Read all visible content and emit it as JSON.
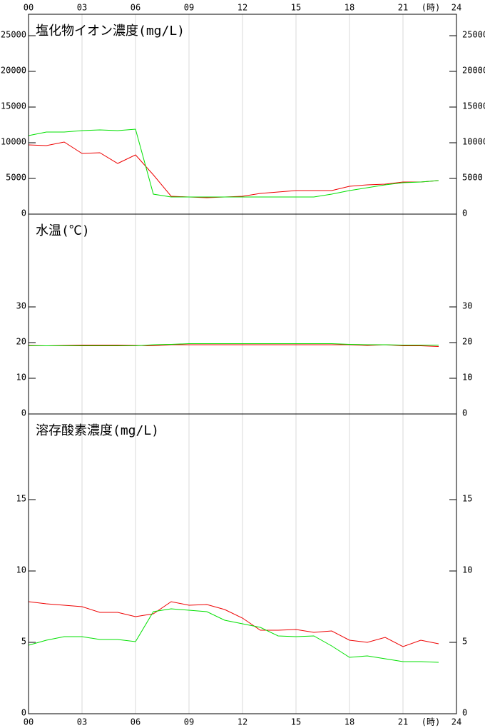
{
  "chart_data": [
    {
      "type": "line",
      "title": "塩化物イオン濃度(mg/L)",
      "x": [
        0,
        1,
        2,
        3,
        4,
        5,
        6,
        7,
        8,
        9,
        10,
        11,
        12,
        13,
        14,
        15,
        16,
        17,
        18,
        19,
        20,
        21,
        22,
        23
      ],
      "xlim": [
        0,
        24
      ],
      "xticks": [
        {
          "value": 0,
          "label": "00"
        },
        {
          "value": 3,
          "label": "03"
        },
        {
          "value": 6,
          "label": "06"
        },
        {
          "value": 9,
          "label": "09"
        },
        {
          "value": 12,
          "label": "12"
        },
        {
          "value": 15,
          "label": "15"
        },
        {
          "value": 18,
          "label": "18"
        },
        {
          "value": 21,
          "label": "21"
        },
        {
          "value": 24,
          "label": "24"
        }
      ],
      "xlabel": "(時)",
      "ylim": [
        0,
        28000
      ],
      "yticks": [
        0,
        5000,
        10000,
        15000,
        20000,
        25000
      ],
      "series": [
        {
          "color": "#ee0000",
          "values": [
            9700,
            9600,
            10100,
            8500,
            8600,
            7100,
            8300,
            5500,
            2500,
            2400,
            2300,
            2400,
            2500,
            2900,
            3100,
            3300,
            3300,
            3300,
            3900,
            4100,
            4200,
            4500,
            4500,
            4700
          ]
        },
        {
          "color": "#00e000",
          "values": [
            11000,
            11500,
            11500,
            11700,
            11800,
            11700,
            11900,
            2800,
            2400,
            2400,
            2400,
            2400,
            2400,
            2400,
            2400,
            2400,
            2400,
            2800,
            3300,
            3700,
            4100,
            4400,
            4500,
            4700
          ]
        }
      ]
    },
    {
      "type": "line",
      "title": "水温(℃)",
      "x": [
        0,
        1,
        2,
        3,
        4,
        5,
        6,
        7,
        8,
        9,
        10,
        11,
        12,
        13,
        14,
        15,
        16,
        17,
        18,
        19,
        20,
        21,
        22,
        23
      ],
      "xlim": [
        0,
        24
      ],
      "ylim": [
        0,
        56
      ],
      "yticks": [
        0,
        10,
        20,
        30
      ],
      "series": [
        {
          "color": "#ee0000",
          "values": [
            19.2,
            19.1,
            19.2,
            19.3,
            19.3,
            19.3,
            19.2,
            19.1,
            19.4,
            19.4,
            19.4,
            19.4,
            19.4,
            19.4,
            19.4,
            19.4,
            19.4,
            19.4,
            19.4,
            19.2,
            19.4,
            19.1,
            19.1,
            18.9
          ]
        },
        {
          "color": "#00e000",
          "values": [
            19.1,
            19.1,
            19.1,
            19.1,
            19.1,
            19.1,
            19.1,
            19.4,
            19.5,
            19.7,
            19.7,
            19.7,
            19.7,
            19.7,
            19.7,
            19.7,
            19.7,
            19.7,
            19.5,
            19.4,
            19.4,
            19.3,
            19.3,
            19.3
          ]
        }
      ]
    },
    {
      "type": "line",
      "title": "溶存酸素濃度(mg/L)",
      "x": [
        0,
        1,
        2,
        3,
        4,
        5,
        6,
        7,
        8,
        9,
        10,
        11,
        12,
        13,
        14,
        15,
        16,
        17,
        18,
        19,
        20,
        21,
        22,
        23
      ],
      "xlim": [
        0,
        24
      ],
      "xticks": [
        {
          "value": 0,
          "label": "00"
        },
        {
          "value": 3,
          "label": "03"
        },
        {
          "value": 6,
          "label": "06"
        },
        {
          "value": 9,
          "label": "09"
        },
        {
          "value": 12,
          "label": "12"
        },
        {
          "value": 15,
          "label": "15"
        },
        {
          "value": 18,
          "label": "18"
        },
        {
          "value": 21,
          "label": "21"
        },
        {
          "value": 24,
          "label": "24"
        }
      ],
      "xlabel": "(時)",
      "ylim": [
        0,
        21
      ],
      "yticks": [
        0,
        5,
        10,
        15
      ],
      "series": [
        {
          "color": "#ee0000",
          "values": [
            7.85,
            7.7,
            7.6,
            7.5,
            7.1,
            7.1,
            6.8,
            7.0,
            7.85,
            7.6,
            7.65,
            7.3,
            6.7,
            5.85,
            5.85,
            5.9,
            5.7,
            5.8,
            5.15,
            5.0,
            5.35,
            4.7,
            5.15,
            4.9
          ]
        },
        {
          "color": "#00e000",
          "values": [
            4.8,
            5.15,
            5.4,
            5.4,
            5.2,
            5.2,
            5.05,
            7.15,
            7.35,
            7.25,
            7.15,
            6.55,
            6.3,
            6.05,
            5.45,
            5.4,
            5.45,
            4.75,
            3.95,
            4.05,
            3.85,
            3.65,
            3.65,
            3.6
          ]
        }
      ]
    }
  ]
}
